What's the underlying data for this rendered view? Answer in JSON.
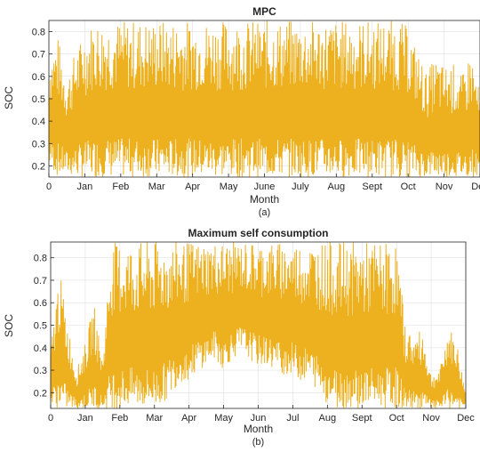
{
  "chart_data": [
    {
      "type": "line",
      "title": "MPC",
      "xlabel": "Month",
      "ylabel": "SOC",
      "caption": "(a)",
      "xticks": [
        "0",
        "Jan",
        "Feb",
        "Mar",
        "Apr",
        "May",
        "June",
        "July",
        "Aug",
        "Sept",
        "Oct",
        "Nov",
        "Dec"
      ],
      "yticks": [
        "0.2",
        "0.3",
        "0.4",
        "0.5",
        "0.6",
        "0.7",
        "0.8"
      ],
      "xlim": [
        0,
        12
      ],
      "ylim": [
        0.15,
        0.85
      ],
      "grid": true,
      "color": "#EDB120",
      "series": [
        {
          "x": [
            0.0,
            0.25,
            0.5,
            0.75,
            1.0,
            1.25,
            1.5,
            1.75,
            2.0,
            2.25,
            2.5,
            2.75,
            3.0,
            3.25,
            3.5,
            3.75,
            4.0,
            4.25,
            4.5,
            4.75,
            5.0,
            5.25,
            5.5,
            5.75,
            6.0,
            6.25,
            6.5,
            6.75,
            7.0,
            7.25,
            7.5,
            7.75,
            8.0,
            8.25,
            8.5,
            8.75,
            9.0,
            9.25,
            9.5,
            9.75,
            10.0,
            10.25,
            10.5,
            10.75,
            11.0,
            11.25,
            11.5,
            11.75,
            12.0
          ],
          "min": [
            0.2,
            0.15,
            0.16,
            0.15,
            0.15,
            0.15,
            0.15,
            0.15,
            0.15,
            0.15,
            0.15,
            0.15,
            0.15,
            0.15,
            0.15,
            0.15,
            0.15,
            0.15,
            0.15,
            0.15,
            0.15,
            0.15,
            0.15,
            0.15,
            0.15,
            0.15,
            0.15,
            0.15,
            0.15,
            0.15,
            0.15,
            0.15,
            0.15,
            0.15,
            0.15,
            0.15,
            0.15,
            0.15,
            0.15,
            0.15,
            0.15,
            0.15,
            0.15,
            0.15,
            0.15,
            0.15,
            0.15,
            0.15,
            0.15
          ],
          "max": [
            0.7,
            0.78,
            0.6,
            0.72,
            0.8,
            0.85,
            0.85,
            0.85,
            0.85,
            0.85,
            0.85,
            0.85,
            0.85,
            0.85,
            0.85,
            0.85,
            0.85,
            0.85,
            0.85,
            0.85,
            0.85,
            0.85,
            0.85,
            0.85,
            0.85,
            0.85,
            0.85,
            0.85,
            0.85,
            0.85,
            0.85,
            0.85,
            0.85,
            0.85,
            0.85,
            0.85,
            0.85,
            0.85,
            0.85,
            0.85,
            0.82,
            0.72,
            0.62,
            0.68,
            0.65,
            0.66,
            0.6,
            0.72,
            0.52
          ]
        }
      ]
    },
    {
      "type": "line",
      "title": "Maximum self consumption",
      "xlabel": "Month",
      "ylabel": "SOC",
      "caption": "(b)",
      "xticks": [
        "0",
        "Jan",
        "Feb",
        "Mar",
        "Apr",
        "May",
        "Jun",
        "Jul",
        "Aug",
        "Sept",
        "Oct",
        "Nov",
        "Dec"
      ],
      "yticks": [
        "0.2",
        "0.3",
        "0.4",
        "0.5",
        "0.6",
        "0.7",
        "0.8"
      ],
      "xlim": [
        0,
        12
      ],
      "ylim": [
        0.13,
        0.87
      ],
      "grid": true,
      "color": "#EDB120",
      "series": [
        {
          "x": [
            0.0,
            0.25,
            0.5,
            0.75,
            1.0,
            1.25,
            1.5,
            1.75,
            2.0,
            2.25,
            2.5,
            2.75,
            3.0,
            3.25,
            3.5,
            3.75,
            4.0,
            4.25,
            4.5,
            4.75,
            5.0,
            5.25,
            5.5,
            5.75,
            6.0,
            6.25,
            6.5,
            6.75,
            7.0,
            7.25,
            7.5,
            7.75,
            8.0,
            8.25,
            8.5,
            8.75,
            9.0,
            9.25,
            9.5,
            9.75,
            10.0,
            10.25,
            10.5,
            10.75,
            11.0,
            11.25,
            11.5,
            11.75,
            12.0
          ],
          "min": [
            0.14,
            0.13,
            0.13,
            0.13,
            0.13,
            0.13,
            0.13,
            0.13,
            0.13,
            0.13,
            0.13,
            0.13,
            0.13,
            0.15,
            0.2,
            0.25,
            0.25,
            0.3,
            0.32,
            0.35,
            0.3,
            0.35,
            0.38,
            0.35,
            0.32,
            0.32,
            0.3,
            0.28,
            0.28,
            0.25,
            0.25,
            0.2,
            0.15,
            0.13,
            0.13,
            0.13,
            0.13,
            0.13,
            0.13,
            0.13,
            0.13,
            0.13,
            0.13,
            0.13,
            0.13,
            0.13,
            0.13,
            0.13,
            0.13
          ],
          "max": [
            0.4,
            0.75,
            0.5,
            0.3,
            0.42,
            0.6,
            0.35,
            0.87,
            0.87,
            0.87,
            0.87,
            0.87,
            0.87,
            0.87,
            0.87,
            0.87,
            0.87,
            0.87,
            0.87,
            0.87,
            0.87,
            0.87,
            0.87,
            0.87,
            0.87,
            0.87,
            0.87,
            0.87,
            0.87,
            0.87,
            0.87,
            0.87,
            0.87,
            0.87,
            0.87,
            0.87,
            0.87,
            0.87,
            0.87,
            0.87,
            0.87,
            0.5,
            0.45,
            0.48,
            0.28,
            0.3,
            0.5,
            0.42,
            0.2
          ]
        }
      ]
    }
  ]
}
